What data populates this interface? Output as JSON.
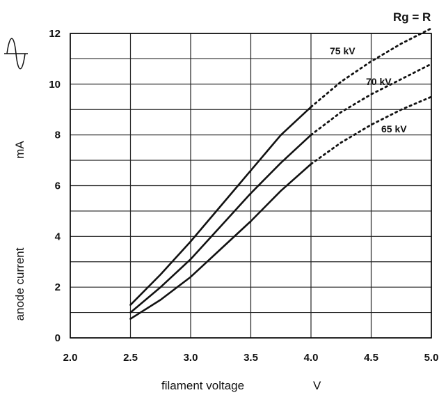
{
  "chart_data": {
    "type": "line",
    "xlabel": "filament voltage",
    "xunit": "V",
    "ylabel": "anode current",
    "yunit": "mA",
    "condition": "Rg = R",
    "xlim": [
      2.0,
      5.0
    ],
    "ylim": [
      0,
      12
    ],
    "x_ticks": [
      "2.0",
      "2.5",
      "3.0",
      "3.5",
      "4.0",
      "4.5",
      "5.0"
    ],
    "y_ticks": [
      "0",
      "2",
      "4",
      "6",
      "8",
      "10",
      "12"
    ],
    "x_grid_step": 0.5,
    "y_grid_step": 1,
    "grid": true,
    "series": [
      {
        "name": "75 kV",
        "measured": {
          "x": [
            2.5,
            2.75,
            3.0,
            3.25,
            3.5,
            3.75,
            4.0
          ],
          "y": [
            1.3,
            2.5,
            3.8,
            5.2,
            6.6,
            8.0,
            9.1
          ]
        },
        "extrapolated": {
          "x": [
            4.0,
            4.25,
            4.5,
            4.75,
            5.0
          ],
          "y": [
            9.1,
            10.1,
            10.9,
            11.6,
            12.2
          ]
        }
      },
      {
        "name": "70 kV",
        "measured": {
          "x": [
            2.5,
            2.75,
            3.0,
            3.25,
            3.5,
            3.75,
            4.0
          ],
          "y": [
            1.0,
            2.0,
            3.1,
            4.4,
            5.7,
            6.9,
            8.0
          ]
        },
        "extrapolated": {
          "x": [
            4.0,
            4.25,
            4.5,
            4.75,
            5.0
          ],
          "y": [
            8.0,
            8.9,
            9.6,
            10.2,
            10.8
          ]
        }
      },
      {
        "name": "65 kV",
        "measured": {
          "x": [
            2.5,
            2.75,
            3.0,
            3.25,
            3.5,
            3.75,
            4.0
          ],
          "y": [
            0.75,
            1.5,
            2.4,
            3.5,
            4.6,
            5.8,
            6.85
          ]
        },
        "extrapolated": {
          "x": [
            4.0,
            4.25,
            4.5,
            4.75,
            5.0
          ],
          "y": [
            6.85,
            7.7,
            8.4,
            9.0,
            9.5
          ]
        }
      }
    ],
    "annotations": [
      {
        "text": "75 kV",
        "series": "75 kV"
      },
      {
        "text": "70 kV",
        "series": "70 kV"
      },
      {
        "text": "65 kV",
        "series": "65 kV"
      }
    ],
    "icon": "ac-sine-wave-icon",
    "colors": {
      "line": "#111111",
      "grid": "#222222",
      "background": "#ffffff"
    }
  }
}
